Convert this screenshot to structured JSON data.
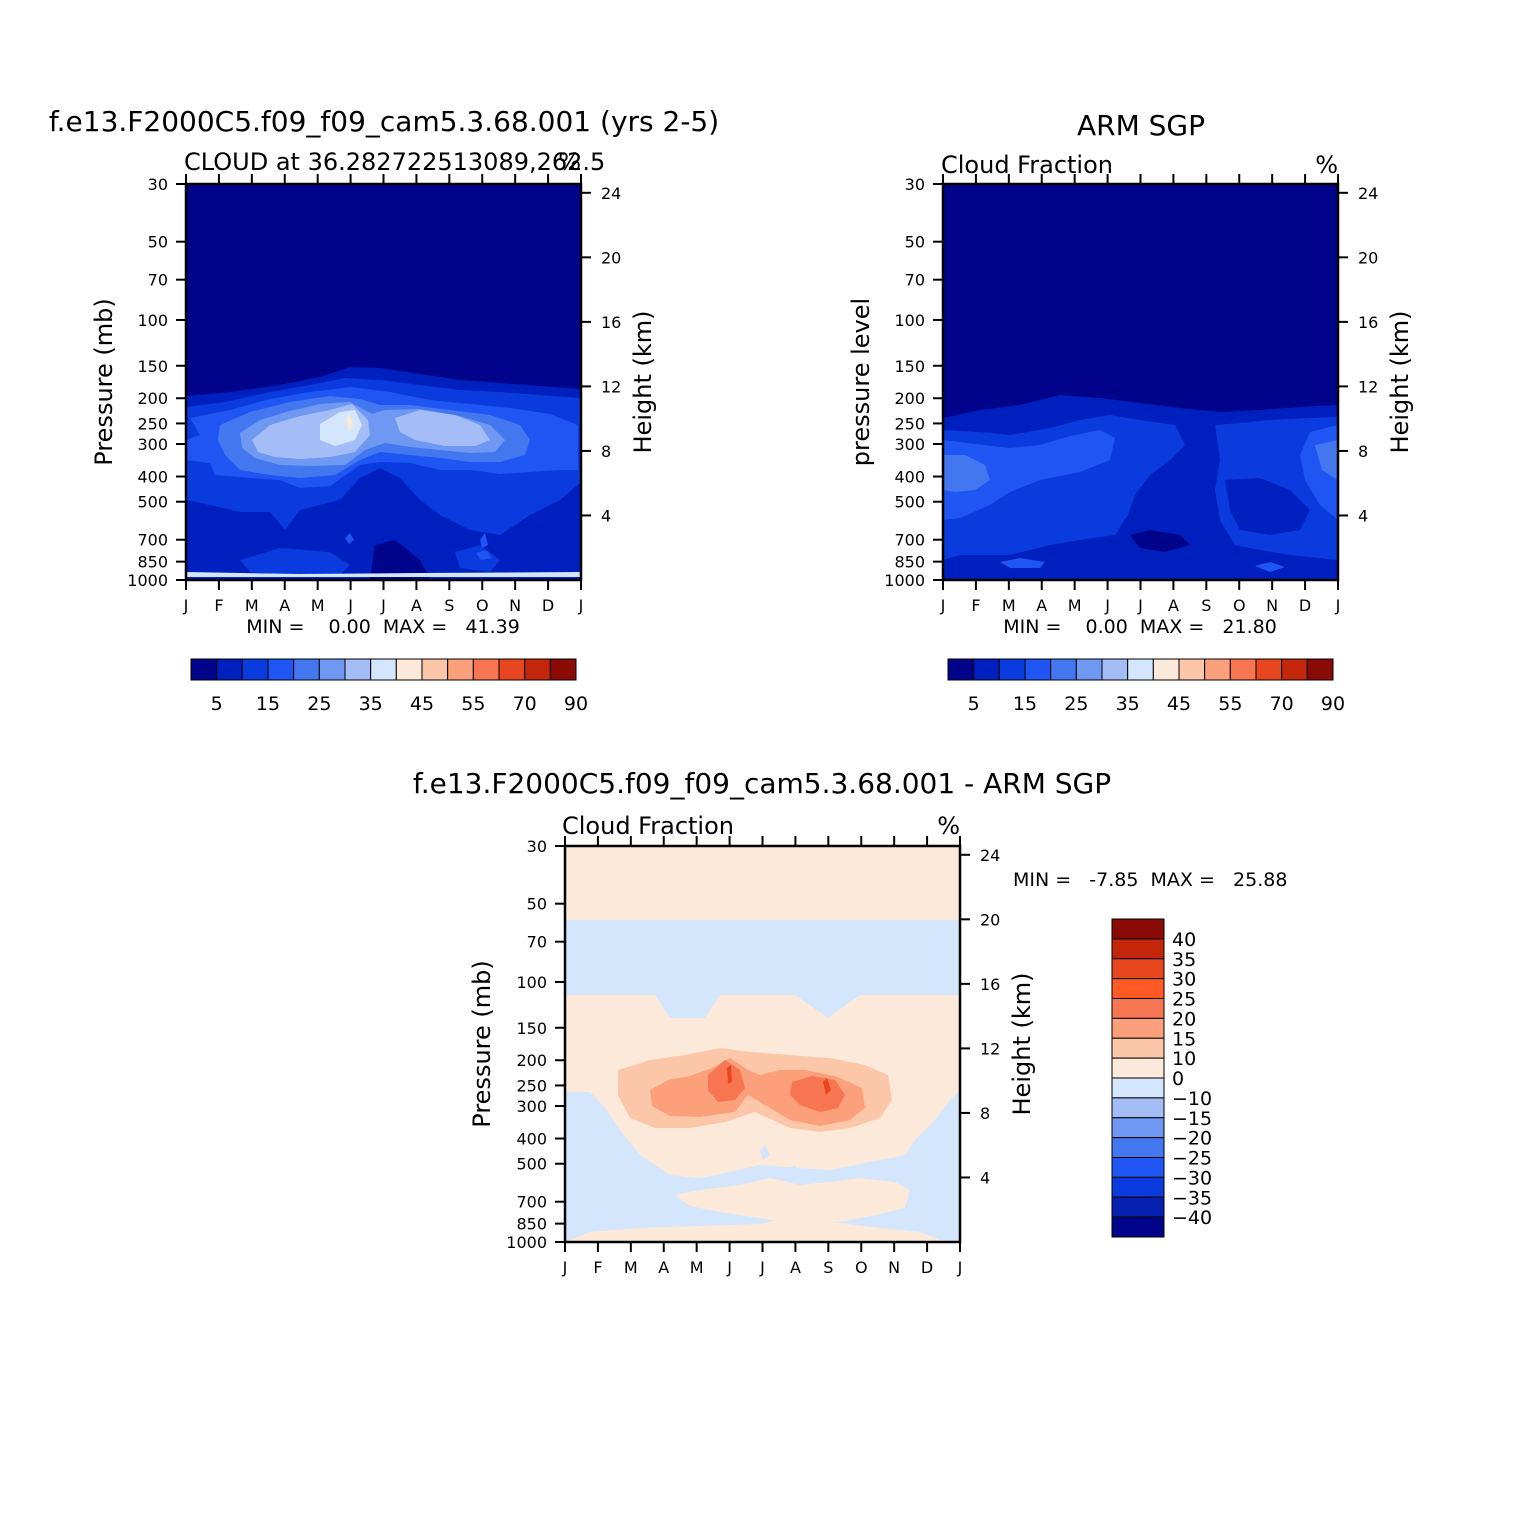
{
  "chart_data": [
    {
      "type": "contour",
      "title": "f.e13.F2000C5.f09_f09_cam5.3.68.001 (yrs 2-5)",
      "subtitle_left": "CLOUD at 36.282722513089,262.5",
      "subtitle_right": "%",
      "ylabel": "Pressure (mb)",
      "ylabel_right": "Height (km)",
      "months": [
        "J",
        "F",
        "M",
        "A",
        "M",
        "J",
        "J",
        "A",
        "S",
        "O",
        "N",
        "D",
        "J"
      ],
      "pressure_ticks": [
        "30",
        "50",
        "70",
        "100",
        "150",
        "200",
        "250",
        "300",
        "400",
        "500",
        "700",
        "850",
        "1000"
      ],
      "height_ticks": [
        "24",
        "20",
        "16",
        "12",
        "8",
        "4"
      ],
      "stats_text": "MIN =    0.00  MAX =   41.39",
      "min": 0.0,
      "max": 41.39,
      "colorbar_labels": [
        "5",
        "15",
        "25",
        "35",
        "45",
        "55",
        "70",
        "90"
      ],
      "features": [
        {
          "name": "upper-cloud-maximum-spring",
          "month_center": 5.0,
          "pressure_mb": 240,
          "value_pct": 41
        }
      ]
    },
    {
      "type": "contour",
      "title": "ARM SGP",
      "subtitle_left": "Cloud Fraction",
      "subtitle_right": "%",
      "ylabel": "pressure level",
      "ylabel_right": "Height (km)",
      "months": [
        "J",
        "F",
        "M",
        "A",
        "M",
        "J",
        "J",
        "A",
        "S",
        "O",
        "N",
        "D",
        "J"
      ],
      "pressure_ticks": [
        "30",
        "50",
        "70",
        "100",
        "150",
        "200",
        "250",
        "300",
        "400",
        "500",
        "700",
        "850",
        "1000"
      ],
      "height_ticks": [
        "24",
        "20",
        "16",
        "12",
        "8",
        "4"
      ],
      "stats_text": "MIN =    0.00  MAX =   21.80",
      "min": 0.0,
      "max": 21.8,
      "colorbar_labels": [
        "5",
        "15",
        "25",
        "35",
        "45",
        "55",
        "70",
        "90"
      ]
    },
    {
      "type": "contour",
      "title": "f.e13.F2000C5.f09_f09_cam5.3.68.001 - ARM SGP",
      "subtitle_left": "Cloud Fraction",
      "subtitle_right": "%",
      "ylabel": "Pressure (mb)",
      "ylabel_right": "Height (km)",
      "months": [
        "J",
        "F",
        "M",
        "A",
        "M",
        "J",
        "J",
        "A",
        "S",
        "O",
        "N",
        "D",
        "J"
      ],
      "pressure_ticks": [
        "30",
        "50",
        "70",
        "100",
        "150",
        "200",
        "250",
        "300",
        "400",
        "500",
        "700",
        "850",
        "1000"
      ],
      "height_ticks": [
        "24",
        "20",
        "16",
        "12",
        "8",
        "4"
      ],
      "stats_text": "MIN =   -7.85  MAX =   25.88",
      "min": -7.85,
      "max": 25.88,
      "colorbar_labels": [
        "40",
        "35",
        "30",
        "25",
        "20",
        "15",
        "10",
        "0",
        "-10",
        "-15",
        "-20",
        "-25",
        "-30",
        "-35",
        "-40"
      ]
    }
  ],
  "colors": {
    "seq_palette": [
      "#00048a",
      "#001fbf",
      "#0a3bdf",
      "#1f55f2",
      "#4377f0",
      "#6f98f2",
      "#a4bdf7",
      "#d4e6fb",
      "#fde9da",
      "#fcc7a8",
      "#fba07a",
      "#f77651",
      "#e8461f",
      "#c4260c",
      "#8a0a06"
    ],
    "diff_palette": [
      "#00048a",
      "#0520b0",
      "#0a3bdf",
      "#1f55f2",
      "#4377f0",
      "#6f98f2",
      "#a4bdf7",
      "#d4e6fb",
      "#fde9da",
      "#fcc7a8",
      "#fba07a",
      "#f77651",
      "#ff5a26",
      "#e8461f",
      "#c4260c",
      "#8a0a06"
    ]
  }
}
